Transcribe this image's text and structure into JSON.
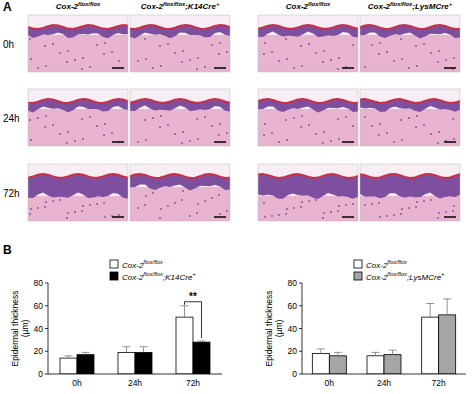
{
  "panel_a": {
    "label": "A",
    "columns": [
      "Cox-2flox/flox",
      "Cox-2flox/flox;K14Cre+",
      "Cox-2flox/flox",
      "Cox-2flox/flox;LysMCre+"
    ],
    "rows": [
      "0h",
      "24h",
      "72h"
    ]
  },
  "panel_b": {
    "label": "B"
  },
  "chart_data": [
    {
      "type": "bar",
      "y_label": "Epidermal thickness\n(µm)",
      "categories": [
        "0h",
        "24h",
        "72h"
      ],
      "series": [
        {
          "name": "Cox-2flox/flox",
          "color": "#ffffff",
          "values": [
            14,
            19,
            50
          ],
          "errors": [
            2,
            5,
            10
          ]
        },
        {
          "name": "Cox-2flox/flox;K14Cre+",
          "color": "#000000",
          "values": [
            17,
            19,
            28
          ],
          "errors": [
            2,
            5,
            1
          ]
        }
      ],
      "ylim": [
        0,
        80
      ],
      "yticks": [
        0,
        20,
        40,
        60,
        80
      ],
      "legend": "top-right",
      "annotations": [
        {
          "text": "**",
          "category": 2
        }
      ]
    },
    {
      "type": "bar",
      "y_label": "Epidermal thickness\n(µm)",
      "categories": [
        "0h",
        "24h",
        "72h"
      ],
      "series": [
        {
          "name": "Cox-2flox/flox",
          "color": "#ffffff",
          "values": [
            18,
            16,
            50
          ],
          "errors": [
            4,
            3,
            12
          ]
        },
        {
          "name": "Cox-2flox/flox;LysMCre+",
          "color": "#a6a6a6",
          "values": [
            16,
            17,
            52
          ],
          "errors": [
            3,
            4,
            14
          ]
        }
      ],
      "ylim": [
        0,
        80
      ],
      "yticks": [
        0,
        20,
        40,
        60,
        80
      ],
      "legend": "top-right"
    }
  ]
}
